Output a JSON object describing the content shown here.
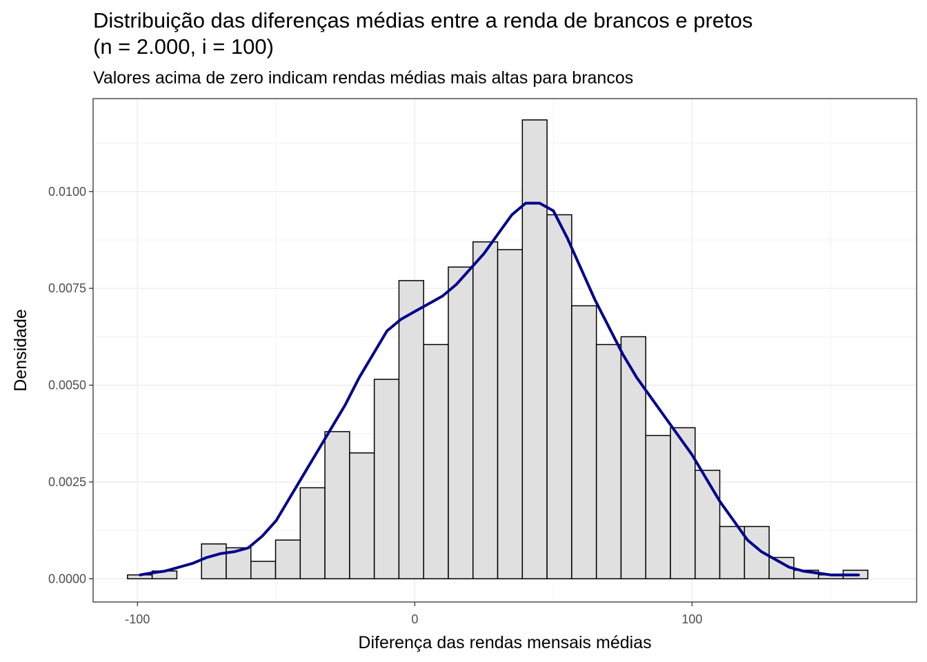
{
  "chart_data": {
    "type": "bar",
    "title_line1": "Distribuição das diferenças médias entre a renda de brancos e pretos",
    "title_line2": "(n = 2.000, i = 100)",
    "subtitle": "Valores acima de zero indicam rendas médias mais altas para brancos",
    "xlabel": "Diferença das rendas mensais médias",
    "ylabel": "Densidade",
    "xlim": [
      -116,
      181
    ],
    "ylim": [
      -0.0006,
      0.0124
    ],
    "x_ticks": [
      -100,
      0,
      100
    ],
    "x_tick_labels": [
      "-100",
      "0",
      "100"
    ],
    "y_ticks": [
      0,
      0.0025,
      0.005,
      0.0075,
      0.01
    ],
    "y_tick_labels": [
      "0.0000",
      "0.0025",
      "0.0050",
      "0.0075",
      "0.0100"
    ],
    "grid": true,
    "histogram": {
      "bin_width": 8.9,
      "bin_start": -103.6,
      "fill": "#e0e0e0",
      "edge": "#000000",
      "values": [
        0.0001,
        0.0002,
        0.0,
        0.0009,
        0.0008,
        0.00045,
        0.001,
        0.00235,
        0.0038,
        0.00325,
        0.00515,
        0.0077,
        0.00605,
        0.00805,
        0.0087,
        0.0085,
        0.01185,
        0.0094,
        0.00705,
        0.00605,
        0.00625,
        0.0037,
        0.0039,
        0.0028,
        0.00135,
        0.00135,
        0.00055,
        0.00022,
        0.0001,
        0.00022
      ]
    },
    "density_curve": {
      "color": "#00008b",
      "x": [
        -99,
        -95,
        -90,
        -85,
        -80,
        -75,
        -70,
        -65,
        -60,
        -55,
        -50,
        -45,
        -40,
        -35,
        -30,
        -25,
        -20,
        -15,
        -10,
        -5,
        0,
        5,
        10,
        15,
        20,
        25,
        30,
        35,
        40,
        45,
        50,
        55,
        60,
        65,
        70,
        75,
        80,
        85,
        90,
        95,
        100,
        105,
        110,
        115,
        120,
        125,
        130,
        135,
        140,
        145,
        150,
        155,
        160
      ],
      "y": [
        0.0001,
        0.00015,
        0.0002,
        0.0003,
        0.0004,
        0.00055,
        0.00065,
        0.0007,
        0.0008,
        0.0011,
        0.0015,
        0.0021,
        0.0027,
        0.0033,
        0.0039,
        0.0045,
        0.0052,
        0.0058,
        0.0064,
        0.0067,
        0.0069,
        0.0071,
        0.0073,
        0.0076,
        0.008,
        0.0084,
        0.0089,
        0.0094,
        0.0097,
        0.0097,
        0.0095,
        0.0088,
        0.008,
        0.0072,
        0.0065,
        0.0058,
        0.0052,
        0.0047,
        0.0042,
        0.0037,
        0.0032,
        0.0026,
        0.002,
        0.0015,
        0.001,
        0.0007,
        0.0005,
        0.0003,
        0.0002,
        0.00015,
        0.0001,
        0.0001,
        0.0001
      ]
    }
  }
}
